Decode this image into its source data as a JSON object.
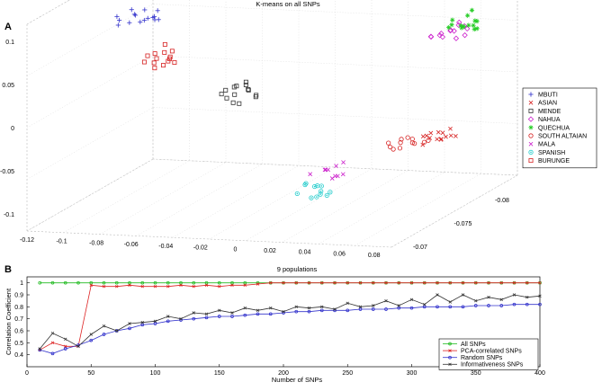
{
  "panels": {
    "a": "A",
    "b": "B"
  },
  "chart_data": [
    {
      "type": "scatter",
      "projection": "3d",
      "title": "K-means on all SNPs",
      "xlabel": "",
      "ylabel": "",
      "zlabel": "",
      "x_ticks": [
        "-0.12",
        "-0.1",
        "-0.08",
        "-0.06",
        "-0.04",
        "-0.02",
        "0",
        "0.02",
        "0.04",
        "0.06",
        "0.08"
      ],
      "y_ticks": [
        "-0.07",
        "-0.075",
        "-0.08"
      ],
      "z_ticks": [
        "0.1",
        "0.05",
        "0",
        "-0.05",
        "-0.1"
      ],
      "grid": true,
      "legend_position": "right",
      "series": [
        {
          "name": "MBUTI",
          "marker": "+",
          "color": "#3333cc",
          "n": 16,
          "center": [
            -0.09,
            -0.075,
            0.09
          ]
        },
        {
          "name": "ASIAN",
          "marker": "x",
          "color": "#d62020",
          "n": 14,
          "center": [
            0.08,
            -0.075,
            -0.035
          ]
        },
        {
          "name": "MENDE",
          "marker": "square",
          "color": "#333333",
          "n": 14,
          "center": [
            -0.035,
            -0.075,
            0.005
          ]
        },
        {
          "name": "NAHUA",
          "marker": "diamond",
          "color": "#cc22cc",
          "n": 14,
          "center": [
            0.1,
            -0.072,
            0.1
          ]
        },
        {
          "name": "QUECHUA",
          "marker": "star",
          "color": "#22cc22",
          "n": 14,
          "center": [
            0.095,
            -0.075,
            0.1
          ]
        },
        {
          "name": "SOUTH ALTAIAN",
          "marker": "circle",
          "color": "#d62020",
          "n": 12,
          "center": [
            0.062,
            -0.075,
            -0.045
          ]
        },
        {
          "name": "MALA",
          "marker": "x",
          "color": "#cc22cc",
          "n": 10,
          "center": [
            0.03,
            -0.072,
            -0.065
          ]
        },
        {
          "name": "SPANISH",
          "marker": "circle-dot",
          "color": "#22cccc",
          "n": 12,
          "center": [
            0.02,
            -0.072,
            -0.09
          ]
        },
        {
          "name": "BURUNGE",
          "marker": "square",
          "color": "#d62020",
          "n": 14,
          "center": [
            -0.078,
            -0.075,
            0.045
          ]
        }
      ]
    },
    {
      "type": "line",
      "title": "9 populations",
      "xlabel": "Number of SNPs",
      "ylabel": "Correlation Coefficient",
      "xlim": [
        0,
        400
      ],
      "ylim": [
        0.3,
        1.05
      ],
      "x_ticks": [
        "0",
        "50",
        "100",
        "150",
        "200",
        "250",
        "300",
        "350",
        "400"
      ],
      "y_ticks": [
        "0.4",
        "0.5",
        "0.6",
        "0.7",
        "0.8",
        "0.9",
        "1"
      ],
      "legend_position": "bottom-right",
      "x": [
        10,
        20,
        30,
        40,
        50,
        60,
        70,
        80,
        90,
        100,
        110,
        120,
        130,
        140,
        150,
        160,
        170,
        180,
        190,
        200,
        210,
        220,
        230,
        240,
        250,
        260,
        270,
        280,
        290,
        300,
        310,
        320,
        330,
        340,
        350,
        360,
        370,
        380,
        390,
        400
      ],
      "series": [
        {
          "name": "All SNPs",
          "color": "#22bb22",
          "marker": "o",
          "values": [
            1,
            1,
            1,
            1,
            1,
            1,
            1,
            1,
            1,
            1,
            1,
            1,
            1,
            1,
            1,
            1,
            1,
            1,
            1,
            1,
            1,
            1,
            1,
            1,
            1,
            1,
            1,
            1,
            1,
            1,
            1,
            1,
            1,
            1,
            1,
            1,
            1,
            1,
            1,
            1
          ]
        },
        {
          "name": "PCA-correlated SNPs",
          "color": "#dd2222",
          "marker": "x",
          "values": [
            0.44,
            0.5,
            0.47,
            0.47,
            0.98,
            0.97,
            0.97,
            0.98,
            0.97,
            0.97,
            0.97,
            0.98,
            0.97,
            0.98,
            0.97,
            0.98,
            0.98,
            0.99,
            1,
            1,
            1,
            1,
            1,
            1,
            1,
            1,
            1,
            1,
            1,
            1,
            1,
            1,
            1,
            1,
            1,
            1,
            1,
            1,
            1,
            1
          ]
        },
        {
          "name": "Random SNPs",
          "color": "#3333cc",
          "marker": "o",
          "values": [
            0.44,
            0.41,
            0.45,
            0.48,
            0.52,
            0.57,
            0.6,
            0.62,
            0.65,
            0.66,
            0.68,
            0.69,
            0.7,
            0.71,
            0.72,
            0.72,
            0.73,
            0.74,
            0.74,
            0.75,
            0.76,
            0.76,
            0.77,
            0.77,
            0.77,
            0.78,
            0.78,
            0.78,
            0.79,
            0.79,
            0.8,
            0.8,
            0.8,
            0.8,
            0.81,
            0.81,
            0.81,
            0.82,
            0.82,
            0.82
          ]
        },
        {
          "name": "Informativeness SNPs",
          "color": "#333333",
          "marker": "x",
          "values": [
            0.45,
            0.58,
            0.53,
            0.47,
            0.57,
            0.64,
            0.6,
            0.66,
            0.67,
            0.68,
            0.72,
            0.7,
            0.75,
            0.74,
            0.77,
            0.75,
            0.79,
            0.77,
            0.79,
            0.76,
            0.8,
            0.79,
            0.8,
            0.78,
            0.83,
            0.8,
            0.81,
            0.85,
            0.81,
            0.86,
            0.82,
            0.9,
            0.84,
            0.9,
            0.85,
            0.88,
            0.86,
            0.9,
            0.88,
            0.89
          ]
        }
      ]
    }
  ]
}
